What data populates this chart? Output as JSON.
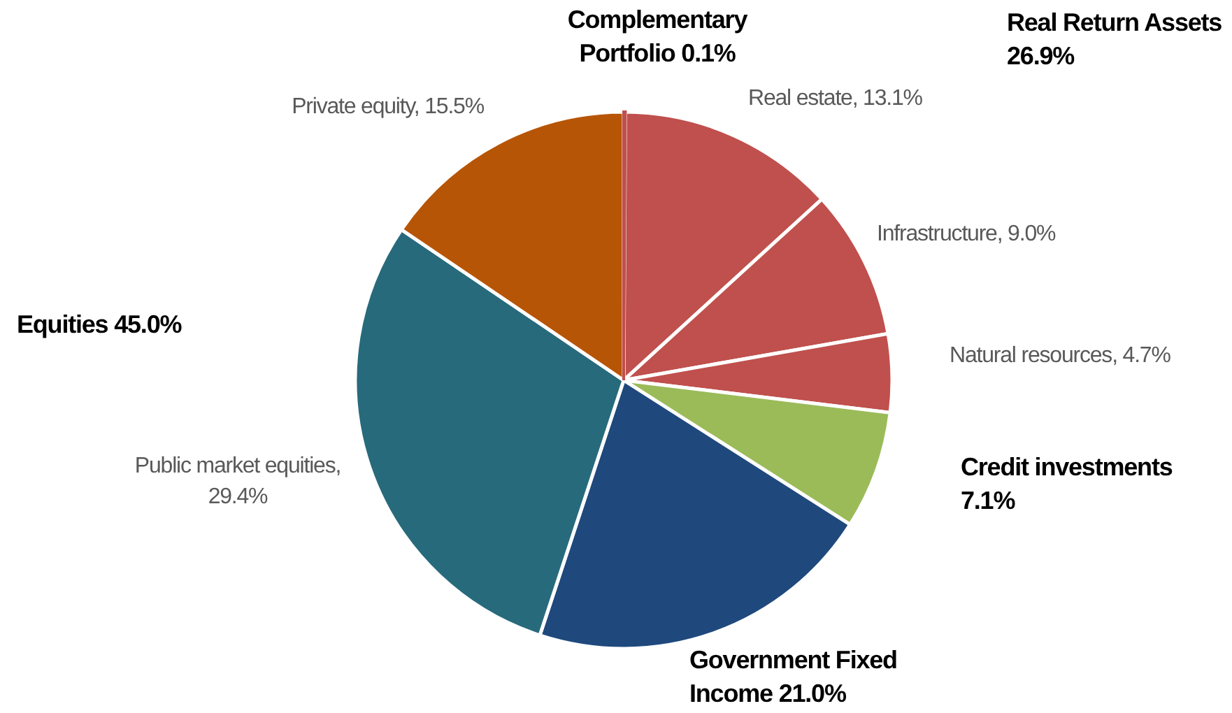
{
  "chart_data": {
    "type": "pie",
    "categories": [
      "Complementary Portfolio",
      "Real estate",
      "Infrastructure",
      "Natural resources",
      "Credit investments",
      "Government Fixed Income",
      "Public market equities",
      "Private equity"
    ],
    "values": [
      0.1,
      13.1,
      9.0,
      4.7,
      7.1,
      21.0,
      29.4,
      15.5
    ],
    "colors": [
      "#c0504d",
      "#c0504d",
      "#c0504d",
      "#c0504d",
      "#9bbb59",
      "#1f497d",
      "#276a7c",
      "#b75506"
    ],
    "value_labels": [
      "0.1%",
      ", 13.1%",
      ", 9.0%",
      ", 4.7%",
      "7.1%",
      "21.0%",
      ", 29.4%",
      ", 15.5%"
    ],
    "annotations": [
      "Real Return Assets 26.9%",
      "Equities 45.0%"
    ]
  }
}
